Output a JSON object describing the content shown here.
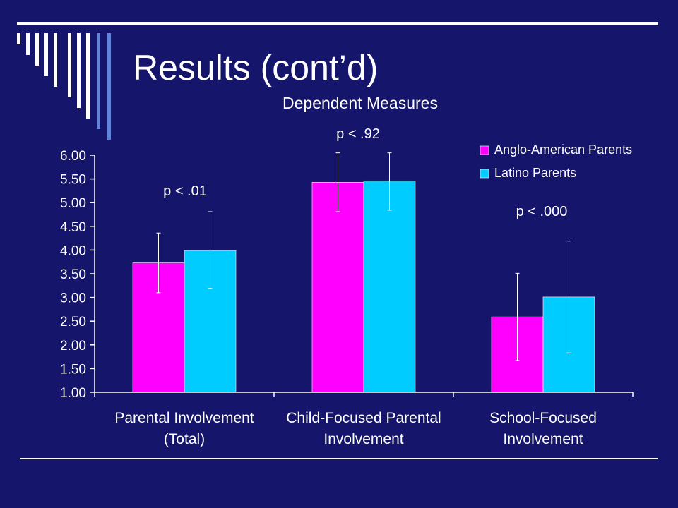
{
  "slide": {
    "title": "Results (cont’d)"
  },
  "colors": {
    "background": "#15156b",
    "anglo": "#ff00ff",
    "latino": "#00ccff",
    "text": "#ffffff",
    "accent_light": "#ffffff",
    "accent_blue": "#5f84d9"
  },
  "chart_data": {
    "type": "bar",
    "title": "Dependent Measures",
    "categories": [
      [
        "Parental Involvement",
        "(Total)"
      ],
      [
        "Child-Focused Parental",
        "Involvement"
      ],
      [
        "School-Focused",
        "Involvement"
      ]
    ],
    "series": [
      {
        "name": "Anglo-American Parents",
        "values": [
          3.73,
          5.43,
          2.59
        ],
        "error_low": [
          3.1,
          4.81,
          1.67
        ],
        "error_high": [
          4.36,
          6.05,
          3.51
        ]
      },
      {
        "name": "Latino Parents",
        "values": [
          3.99,
          5.46,
          3.01
        ],
        "error_low": [
          3.19,
          4.84,
          1.83
        ],
        "error_high": [
          4.81,
          6.05,
          4.19
        ]
      }
    ],
    "annotations": [
      "p < .01",
      "p < .92",
      "p < .000"
    ],
    "ylim": [
      1.0,
      6.0
    ],
    "yticks": [
      "1.00",
      "1.50",
      "2.00",
      "2.50",
      "3.00",
      "3.50",
      "4.00",
      "4.50",
      "5.00",
      "5.50",
      "6.00"
    ],
    "legend": "top-right",
    "grid": false
  }
}
